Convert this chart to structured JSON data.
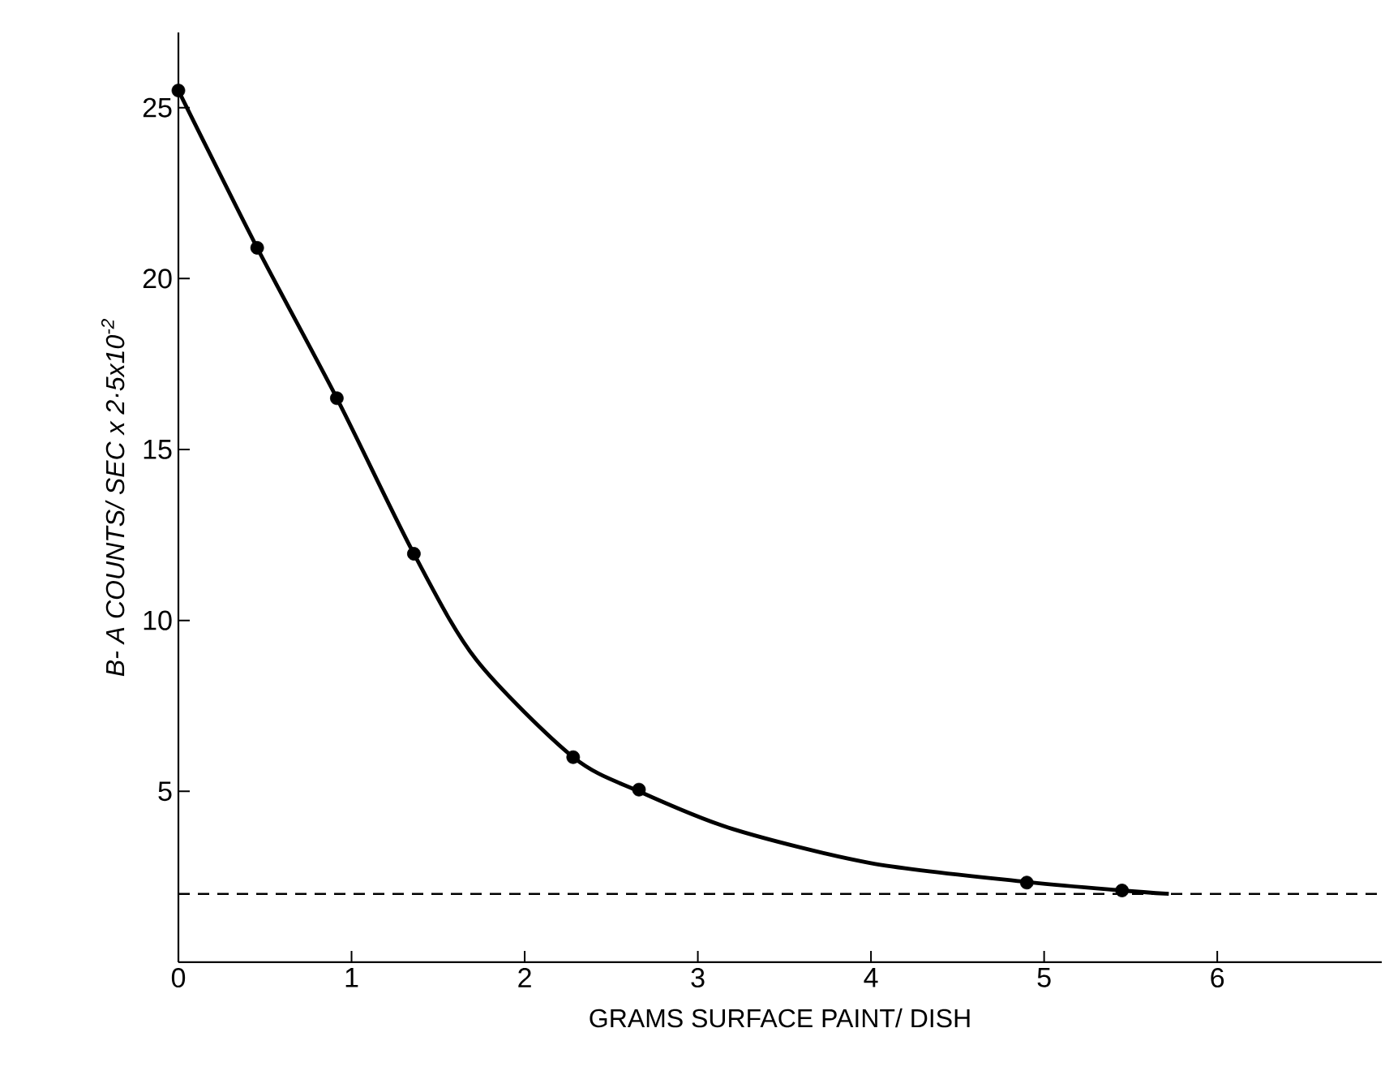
{
  "chart_data": {
    "type": "scatter",
    "xlabel": "GRAMS  SURFACE  PAINT/ DISH",
    "ylabel": "B- A COUNTS/ SEC x 2·5x10$^{-2}$",
    "xlim": [
      0,
      6.95
    ],
    "ylim": [
      0,
      27.2
    ],
    "xticks": [
      0,
      1,
      2,
      3,
      4,
      5,
      6
    ],
    "yticks": [
      5,
      10,
      15,
      20,
      25
    ],
    "grid": false,
    "series": [
      {
        "color": "#000000",
        "marker": "circle",
        "x": [
          0,
          0.455,
          0.915,
          1.36,
          2.28,
          2.66,
          4.9,
          5.45
        ],
        "values": [
          25.5,
          20.9,
          16.5,
          11.95,
          6.0,
          5.05,
          2.33,
          2.1
        ]
      },
      {
        "type": "line",
        "color": "#000000",
        "line_style": "solid",
        "x": [
          0,
          0.455,
          0.915,
          1.36,
          1.72,
          2.28,
          2.66,
          3.2,
          4.0,
          4.9,
          5.45,
          5.72
        ],
        "values": [
          25.5,
          20.9,
          16.5,
          11.95,
          8.85,
          6.0,
          5.0,
          3.9,
          2.9,
          2.35,
          2.1,
          2.0
        ]
      }
    ],
    "ref_lines": [
      {
        "axis": "y",
        "value": 2,
        "color": "#000000",
        "line_style": "dashed"
      }
    ]
  }
}
